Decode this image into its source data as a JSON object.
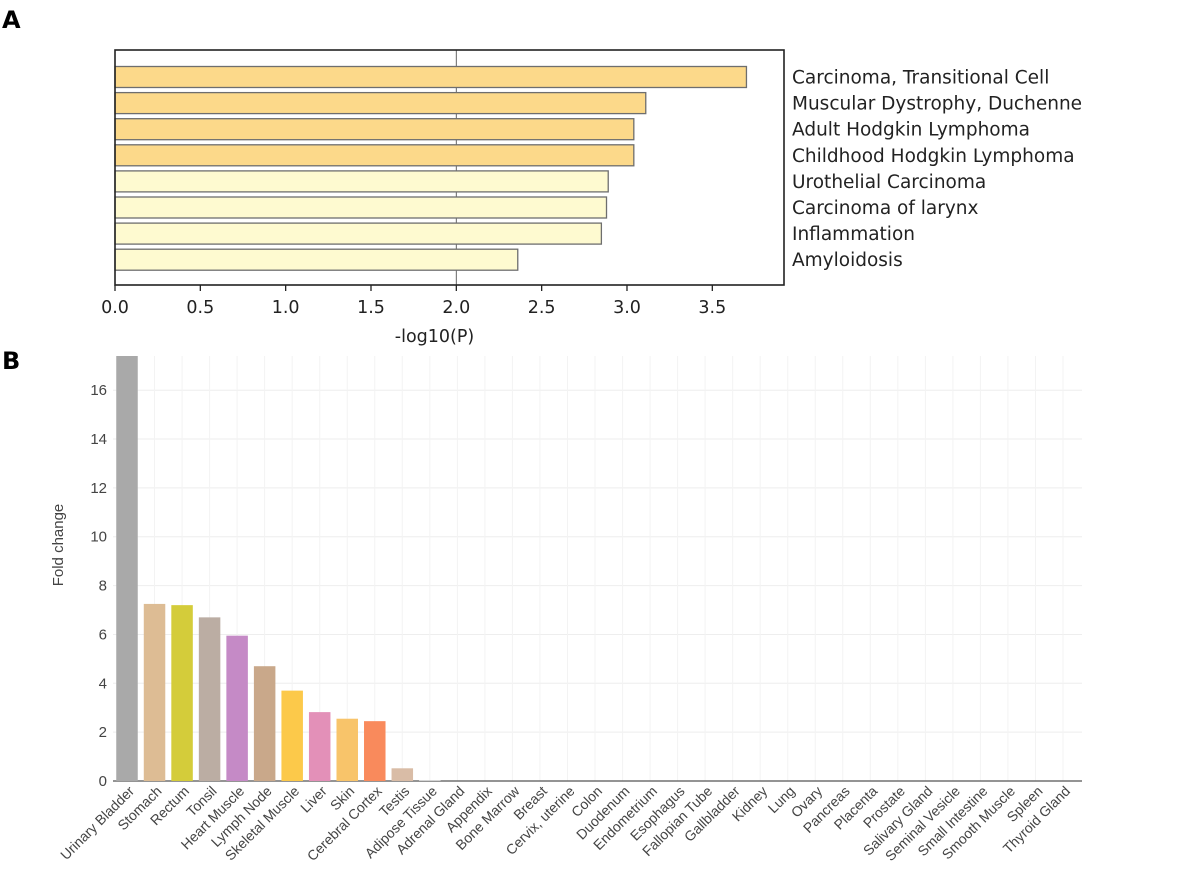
{
  "panels": {
    "a_label": "A",
    "b_label": "B"
  },
  "chart_data": [
    {
      "type": "bar",
      "orientation": "horizontal",
      "categories": [
        "Carcinoma, Transitional Cell",
        "Muscular Dystrophy, Duchenne",
        "Adult Hodgkin Lymphoma",
        "Childhood Hodgkin Lymphoma",
        "Urothelial Carcinoma",
        "Carcinoma of larynx",
        "Inflammation",
        "Amyloidosis"
      ],
      "values": [
        3.7,
        3.11,
        3.04,
        3.04,
        2.89,
        2.88,
        2.85,
        2.36
      ],
      "colors": [
        "#fcd98a",
        "#fcd98a",
        "#fcd98a",
        "#fcd98a",
        "#fefad0",
        "#fefad0",
        "#fefad0",
        "#fefad0"
      ],
      "xlabel": "-log10(P)",
      "xlim": [
        0,
        3.92
      ],
      "xticks": [
        0.0,
        0.5,
        1.0,
        1.5,
        2.0,
        2.5,
        3.0,
        3.5
      ],
      "xtick_labels": [
        "0.0",
        "0.5",
        "1.0",
        "1.5",
        "2.0",
        "2.5",
        "3.0",
        "3.5"
      ],
      "reference_line": 2.0
    },
    {
      "type": "bar",
      "categories": [
        "Urinary Bladder",
        "Stomach",
        "Rectum",
        "Tonsil",
        "Heart Muscle",
        "Lymph Node",
        "Skeletal Muscle",
        "Liver",
        "Skin",
        "Cerebral Cortex",
        "Testis",
        "Adipose Tissue",
        "Adrenal Gland",
        "Appendix",
        "Bone Marrow",
        "Breast",
        "Cervix, uterine",
        "Colon",
        "Duodenum",
        "Endometrium",
        "Esophagus",
        "Fallopian Tube",
        "Gallbladder",
        "Kidney",
        "Lung",
        "Ovary",
        "Pancreas",
        "Placenta",
        "Prostate",
        "Salivary Gland",
        "Seminal Vesicle",
        "Small Intestine",
        "Smooth Muscle",
        "Spleen",
        "Thyroid Gland"
      ],
      "values": [
        17.4,
        7.25,
        7.2,
        6.7,
        5.95,
        4.7,
        3.7,
        2.82,
        2.55,
        2.45,
        0.52,
        0.02,
        0,
        0,
        0,
        0,
        0,
        0,
        0,
        0,
        0,
        0,
        0,
        0,
        0,
        0,
        0,
        0,
        0,
        0,
        0,
        0,
        0,
        0,
        0
      ],
      "colors": [
        "#a9a9a9",
        "#ddbc94",
        "#d4cc3a",
        "#bbada3",
        "#c58ac6",
        "#c9a88a",
        "#fcc94a",
        "#e390b8",
        "#f8c46a",
        "#f98a5c",
        "#d9bca6",
        "#d9d9d9",
        "#d9d9d9",
        "#d9d9d9",
        "#d9d9d9",
        "#d9d9d9",
        "#d9d9d9",
        "#d9d9d9",
        "#d9d9d9",
        "#d9d9d9",
        "#d9d9d9",
        "#d9d9d9",
        "#d9d9d9",
        "#d9d9d9",
        "#d9d9d9",
        "#d9d9d9",
        "#d9d9d9",
        "#d9d9d9",
        "#d9d9d9",
        "#d9d9d9",
        "#d9d9d9",
        "#d9d9d9",
        "#d9d9d9",
        "#d9d9d9",
        "#d9d9d9"
      ],
      "ylabel": "Fold change",
      "ylim": [
        0,
        17.4
      ],
      "yticks": [
        0,
        2,
        4,
        6,
        8,
        10,
        12,
        14,
        16
      ],
      "ytick_labels": [
        "0",
        "2",
        "4",
        "6",
        "8",
        "10",
        "12",
        "14",
        "16"
      ],
      "grid": true
    }
  ]
}
